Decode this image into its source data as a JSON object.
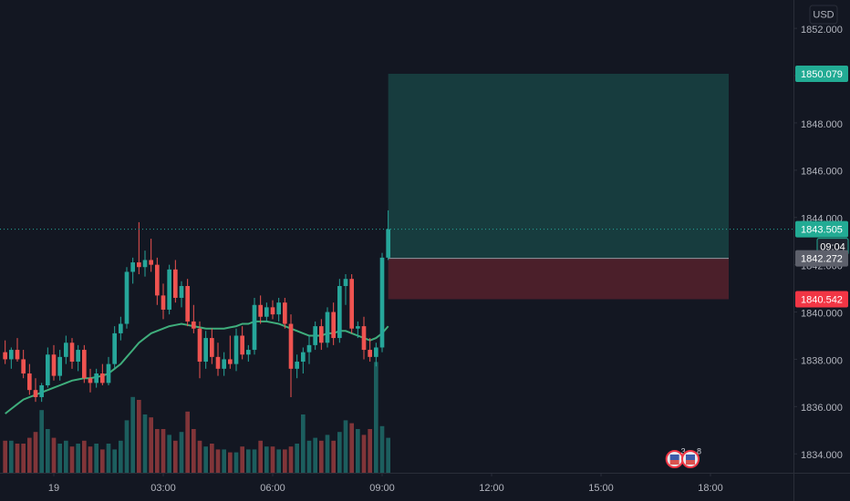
{
  "chart_data": {
    "type": "candlestick",
    "currency": "USD",
    "x": [
      -80,
      -70,
      -60,
      -50,
      -40,
      -30,
      -20,
      -10,
      0,
      10,
      20,
      30,
      40,
      50,
      60,
      70,
      80,
      90,
      100,
      110,
      120,
      130,
      140,
      150,
      160,
      170,
      180,
      190,
      200,
      210,
      220,
      230,
      240,
      250,
      260,
      270,
      280,
      290,
      300,
      310,
      320,
      330,
      340,
      350,
      360,
      370,
      380,
      390,
      400,
      410,
      420,
      430,
      440,
      450,
      460,
      470,
      480,
      490,
      500,
      510,
      520,
      530,
      540,
      550
    ],
    "open": [
      1838.3,
      1838.0,
      1838.4,
      1838.0,
      1837.4,
      1836.7,
      1836.4,
      1836.9,
      1838.2,
      1837.3,
      1838.1,
      1838.7,
      1837.9,
      1838.4,
      1837.2,
      1837.0,
      1837.4,
      1837.0,
      1837.8,
      1839.1,
      1839.5,
      1841.7,
      1842.1,
      1841.9,
      1842.2,
      1842.0,
      1840.7,
      1840.1,
      1841.8,
      1840.6,
      1841.1,
      1839.6,
      1839.3,
      1837.9,
      1838.9,
      1838.1,
      1837.6,
      1838.0,
      1837.8,
      1839.0,
      1838.2,
      1838.4,
      1840.3,
      1839.8,
      1840.2,
      1839.9,
      1840.4,
      1839.5,
      1837.6,
      1837.9,
      1838.3,
      1838.6,
      1839.4,
      1838.7,
      1840.0,
      1838.9,
      1841.1,
      1841.4,
      1839.3,
      1839.4,
      1838.4,
      1838.1,
      1838.5,
      1842.3
    ],
    "high": [
      1838.8,
      1838.5,
      1838.9,
      1838.4,
      1837.8,
      1837.2,
      1837.0,
      1838.5,
      1838.6,
      1838.4,
      1839.0,
      1838.9,
      1838.6,
      1838.6,
      1837.6,
      1837.6,
      1837.8,
      1838.1,
      1839.4,
      1839.8,
      1841.9,
      1842.3,
      1843.8,
      1842.6,
      1843.1,
      1842.3,
      1841.2,
      1842.0,
      1842.2,
      1841.3,
      1841.4,
      1840.3,
      1839.6,
      1839.2,
      1839.3,
      1838.7,
      1838.3,
      1839.0,
      1839.3,
      1839.4,
      1838.6,
      1840.6,
      1840.7,
      1840.4,
      1840.5,
      1840.6,
      1840.6,
      1839.9,
      1838.2,
      1838.5,
      1839.0,
      1839.6,
      1839.7,
      1840.2,
      1840.4,
      1841.4,
      1841.6,
      1841.6,
      1839.6,
      1839.8,
      1838.9,
      1838.7,
      1842.5,
      1844.3
    ],
    "low": [
      1837.8,
      1837.6,
      1837.9,
      1837.2,
      1836.5,
      1836.2,
      1836.2,
      1836.8,
      1837.1,
      1837.1,
      1837.8,
      1837.6,
      1837.5,
      1837.0,
      1836.6,
      1836.8,
      1836.9,
      1836.9,
      1837.6,
      1838.8,
      1839.3,
      1841.2,
      1841.6,
      1841.5,
      1841.7,
      1840.3,
      1839.7,
      1839.9,
      1840.4,
      1840.2,
      1839.4,
      1839.1,
      1837.2,
      1837.6,
      1837.8,
      1837.3,
      1837.3,
      1837.6,
      1837.5,
      1838.0,
      1837.9,
      1838.2,
      1839.5,
      1839.6,
      1839.7,
      1839.6,
      1839.3,
      1836.4,
      1837.2,
      1837.4,
      1837.8,
      1838.4,
      1838.4,
      1838.5,
      1838.6,
      1838.7,
      1840.3,
      1839.1,
      1838.9,
      1838.0,
      1837.9,
      1837.7,
      1838.3,
      1842.2
    ],
    "close": [
      1838.0,
      1838.4,
      1838.0,
      1837.4,
      1836.7,
      1836.4,
      1836.9,
      1838.2,
      1837.3,
      1838.1,
      1838.7,
      1837.9,
      1838.4,
      1837.2,
      1837.0,
      1837.4,
      1837.0,
      1837.8,
      1839.1,
      1839.5,
      1841.7,
      1842.1,
      1841.9,
      1842.2,
      1842.0,
      1840.7,
      1840.1,
      1841.8,
      1840.6,
      1841.1,
      1839.6,
      1839.3,
      1837.9,
      1838.9,
      1838.1,
      1837.6,
      1838.0,
      1837.8,
      1839.0,
      1838.2,
      1838.4,
      1840.3,
      1839.8,
      1840.2,
      1839.9,
      1840.4,
      1839.5,
      1837.6,
      1837.9,
      1838.3,
      1838.6,
      1839.4,
      1838.7,
      1840.0,
      1838.9,
      1841.1,
      1841.4,
      1839.3,
      1839.4,
      1838.4,
      1838.1,
      1838.5,
      1842.3,
      1843.505
    ],
    "volume": [
      22,
      22,
      20,
      20,
      24,
      28,
      43,
      30,
      24,
      20,
      22,
      18,
      20,
      22,
      18,
      20,
      16,
      20,
      16,
      22,
      36,
      52,
      50,
      40,
      38,
      30,
      30,
      26,
      22,
      28,
      42,
      30,
      22,
      18,
      20,
      16,
      16,
      14,
      14,
      18,
      16,
      16,
      22,
      18,
      18,
      16,
      16,
      18,
      20,
      40,
      22,
      24,
      22,
      26,
      22,
      28,
      36,
      34,
      30,
      26,
      30,
      76,
      32,
      24
    ],
    "vlim": [
      0,
      100
    ],
    "ma": [
      1835.7,
      1835.9,
      1836.1,
      1836.3,
      1836.4,
      1836.5,
      1836.6,
      1836.7,
      1836.8,
      1836.9,
      1837.0,
      1837.1,
      1837.15,
      1837.2,
      1837.2,
      1837.25,
      1837.3,
      1837.4,
      1837.6,
      1837.8,
      1838.1,
      1838.4,
      1838.7,
      1838.9,
      1839.1,
      1839.2,
      1839.3,
      1839.4,
      1839.45,
      1839.5,
      1839.45,
      1839.4,
      1839.35,
      1839.3,
      1839.3,
      1839.3,
      1839.3,
      1839.35,
      1839.4,
      1839.5,
      1839.5,
      1839.6,
      1839.6,
      1839.6,
      1839.55,
      1839.5,
      1839.4,
      1839.3,
      1839.2,
      1839.1,
      1839.0,
      1839.0,
      1839.0,
      1839.1,
      1839.1,
      1839.2,
      1839.2,
      1839.1,
      1839.0,
      1838.9,
      1838.8,
      1838.9,
      1839.1,
      1839.4
    ],
    "up_color": "#26a69a",
    "down_color": "#ef5350",
    "ma_color": "#3fae7c",
    "xlim": [
      -88.5,
      1216.5
    ],
    "ylim": [
      1833.2,
      1853.2
    ],
    "xticks": [
      {
        "value": 0,
        "label": "19"
      },
      {
        "value": 180,
        "label": "03:00"
      },
      {
        "value": 360,
        "label": "06:00"
      },
      {
        "value": 540,
        "label": "09:00"
      },
      {
        "value": 720,
        "label": "12:00"
      },
      {
        "value": 900,
        "label": "15:00"
      },
      {
        "value": 1080,
        "label": "18:00"
      }
    ],
    "yticks": [
      {
        "value": 1834,
        "label": "1834.000"
      },
      {
        "value": 1836,
        "label": "1836.000"
      },
      {
        "value": 1838,
        "label": "1838.000"
      },
      {
        "value": 1840,
        "label": "1840.000"
      },
      {
        "value": 1842,
        "label": "1842.000"
      },
      {
        "value": 1844,
        "label": "1844.000"
      },
      {
        "value": 1846,
        "label": "1846.000"
      },
      {
        "value": 1848,
        "label": "1848.000"
      },
      {
        "value": 1850,
        "label": "1850.000"
      },
      {
        "value": 1852,
        "label": "1852.000"
      }
    ],
    "last_price": 1843.505,
    "countdown": "09:04",
    "position": {
      "entry": 1842.272,
      "target": 1850.079,
      "stop": 1840.542,
      "start": 550,
      "end": 1110
    },
    "events": [
      {
        "x": 1021,
        "label": "3"
      },
      {
        "x": 1047,
        "label": "8"
      }
    ]
  }
}
